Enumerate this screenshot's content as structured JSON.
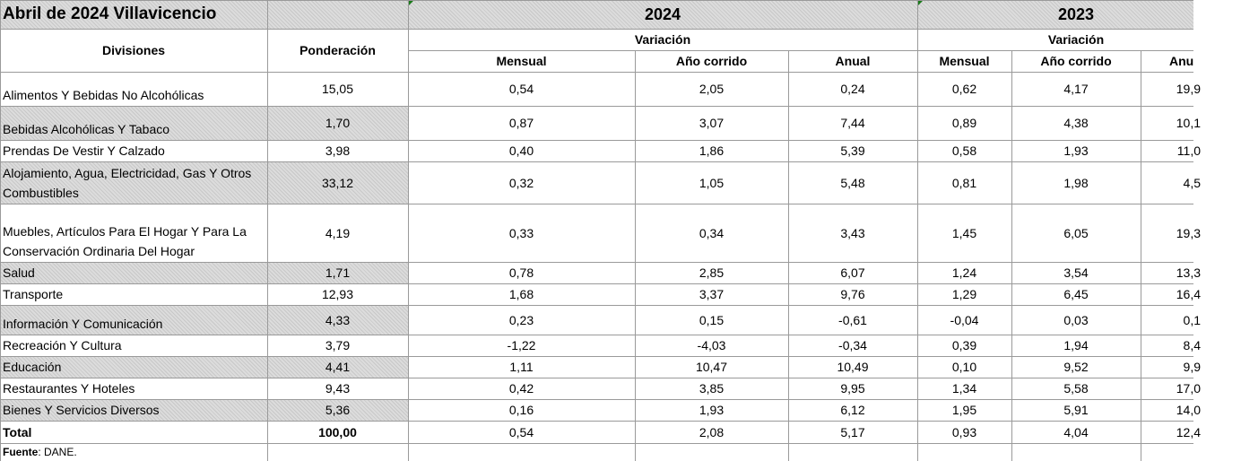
{
  "header": {
    "title": "Abril de 2024 Villavicencio",
    "years": [
      "2024",
      "2023"
    ],
    "group": "Variación",
    "divisions": "Divisiones",
    "weight": "Ponderación",
    "subcolumns_2024": [
      "Mensual",
      "Año corrido",
      "Anual"
    ],
    "subcolumns_2023": [
      "Mensual",
      "Año corrido",
      "Anu"
    ]
  },
  "table": {
    "rows": [
      [
        "Alimentos Y Bebidas No Alcohólicas",
        "15,05",
        "0,54",
        "2,05",
        "0,24",
        "0,62",
        "4,17",
        "19,9"
      ],
      [
        "Bebidas Alcohólicas Y Tabaco",
        "1,70",
        "0,87",
        "3,07",
        "7,44",
        "0,89",
        "4,38",
        "10,1"
      ],
      [
        "Prendas De Vestir Y Calzado",
        "3,98",
        "0,40",
        "1,86",
        "5,39",
        "0,58",
        "1,93",
        "11,0"
      ],
      [
        "Alojamiento, Agua, Electricidad, Gas Y Otros Combustibles",
        "33,12",
        "0,32",
        "1,05",
        "5,48",
        "0,81",
        "1,98",
        "4,5"
      ],
      [
        "Muebles, Artículos Para El Hogar Y Para La Conservación Ordinaria Del Hogar",
        "4,19",
        "0,33",
        "0,34",
        "3,43",
        "1,45",
        "6,05",
        "19,3"
      ],
      [
        "Salud",
        "1,71",
        "0,78",
        "2,85",
        "6,07",
        "1,24",
        "3,54",
        "13,3"
      ],
      [
        "Transporte",
        "12,93",
        "1,68",
        "3,37",
        "9,76",
        "1,29",
        "6,45",
        "16,4"
      ],
      [
        "Información Y Comunicación",
        "4,33",
        "0,23",
        "0,15",
        "-0,61",
        "-0,04",
        "0,03",
        "0,1"
      ],
      [
        "Recreación Y Cultura",
        "3,79",
        "-1,22",
        "-4,03",
        "-0,34",
        "0,39",
        "1,94",
        "8,4"
      ],
      [
        "Educación",
        "4,41",
        "1,11",
        "10,47",
        "10,49",
        "0,10",
        "9,52",
        "9,9"
      ],
      [
        "Restaurantes Y Hoteles",
        "9,43",
        "0,42",
        "3,85",
        "9,95",
        "1,34",
        "5,58",
        "17,0"
      ],
      [
        "Bienes Y Servicios Diversos",
        "5,36",
        "0,16",
        "1,93",
        "6,12",
        "1,95",
        "5,91",
        "14,0"
      ],
      [
        "Total",
        "100,00",
        "0,54",
        "2,08",
        "5,17",
        "0,93",
        "4,04",
        "12,4"
      ]
    ]
  },
  "footer": {
    "label": "Fuente",
    "source": ": DANE."
  }
}
